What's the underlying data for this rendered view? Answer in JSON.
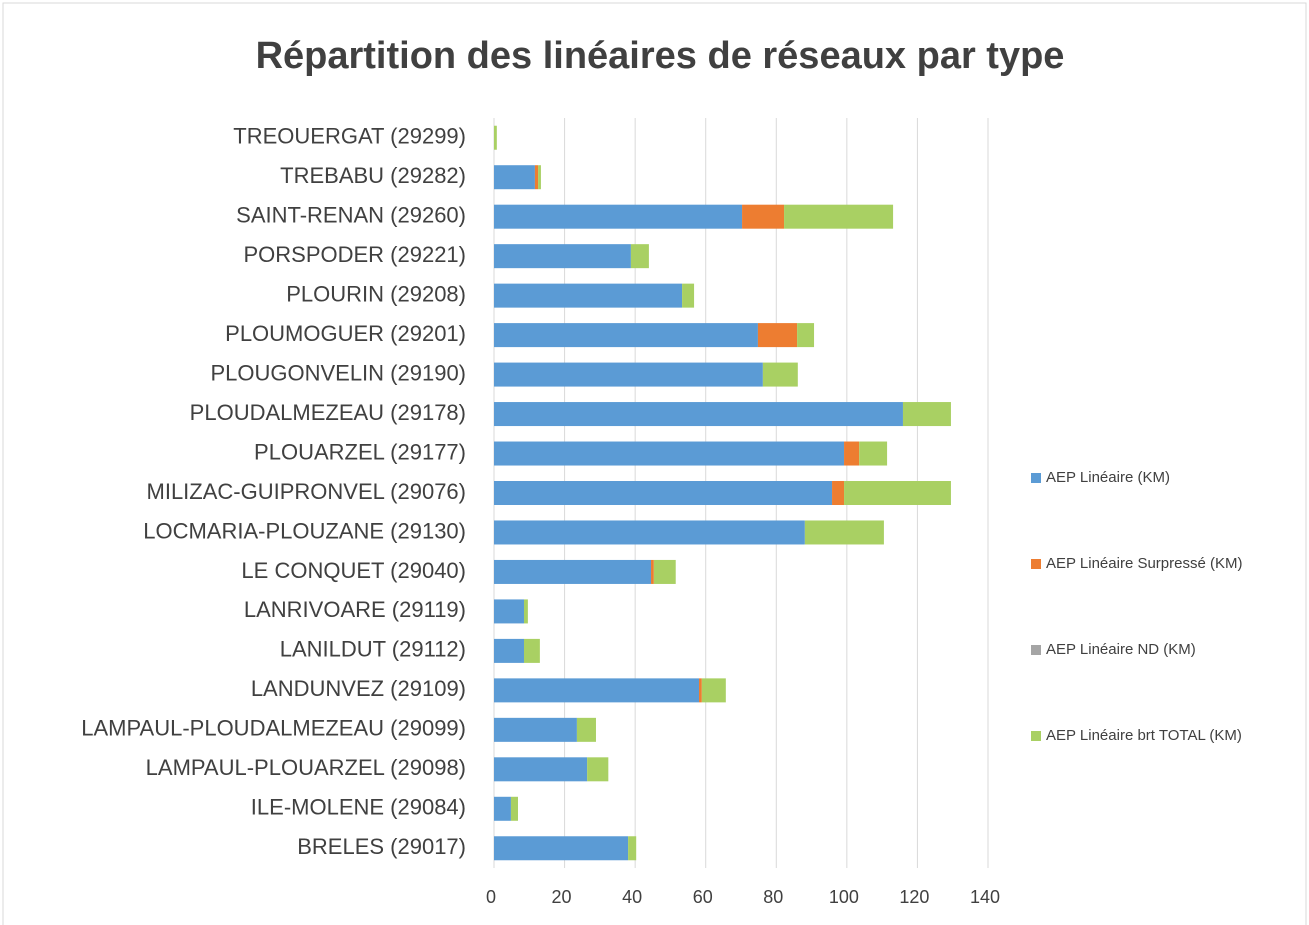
{
  "chart_data": {
    "type": "stacked_bar_horizontal",
    "title": "Répartition des linéaires de réseaux par type",
    "categories": [
      "TREOUERGAT (29299)",
      "TREBABU (29282)",
      "SAINT-RENAN (29260)",
      "PORSPODER (29221)",
      "PLOURIN (29208)",
      "PLOUMOGUER (29201)",
      "PLOUGONVELIN (29190)",
      "PLOUDALMEZEAU (29178)",
      "PLOUARZEL (29177)",
      "MILIZAC-GUIPRONVEL (29076)",
      "LOCMARIA-PLOUZANE (29130)",
      "LE CONQUET (29040)",
      "LANRIVOARE (29119)",
      "LANILDUT (29112)",
      "LANDUNVEZ (29109)",
      "LAMPAUL-PLOUDALMEZEAU (29099)",
      "LAMPAUL-PLOUARZEL (29098)",
      "ILE-MOLENE (29084)",
      "BRELES (29017)"
    ],
    "series": [
      {
        "name": "AEP Linéaire (KM)",
        "color": "#5b9bd5",
        "values": [
          0,
          11.6,
          70.3,
          38.8,
          53.3,
          74.8,
          76.2,
          115.9,
          99.2,
          95.8,
          88.1,
          44.5,
          8.5,
          8.5,
          58.1,
          23.5,
          26.4,
          4.8,
          38
        ]
      },
      {
        "name": "AEP Linéaire Surpressé (KM)",
        "color": "#ed7d31",
        "values": [
          0,
          0.9,
          11.9,
          0,
          0,
          11.1,
          0,
          0,
          4.3,
          3.4,
          0,
          0.8,
          0,
          0,
          0.8,
          0,
          0,
          0,
          0
        ]
      },
      {
        "name": "AEP Linéaire ND (KM)",
        "color": "#a5a5a5",
        "values": [
          0,
          0,
          0,
          0,
          0,
          0,
          0,
          0,
          0,
          0,
          0,
          0,
          0,
          0,
          0,
          0,
          0,
          0,
          0
        ]
      },
      {
        "name": "AEP Linéaire brt TOTAL (KM)",
        "color": "#a9d063",
        "values": [
          0.8,
          0.8,
          30.9,
          5.1,
          3.4,
          4.8,
          9.9,
          13.6,
          7.9,
          30.3,
          22.4,
          6.2,
          1.1,
          4.5,
          6.8,
          5.4,
          6,
          2,
          2.3
        ]
      }
    ],
    "xlim": [
      0,
      140
    ],
    "xticks": [
      0,
      20,
      40,
      60,
      80,
      100,
      120,
      140
    ],
    "grid": true,
    "legend": "right"
  }
}
